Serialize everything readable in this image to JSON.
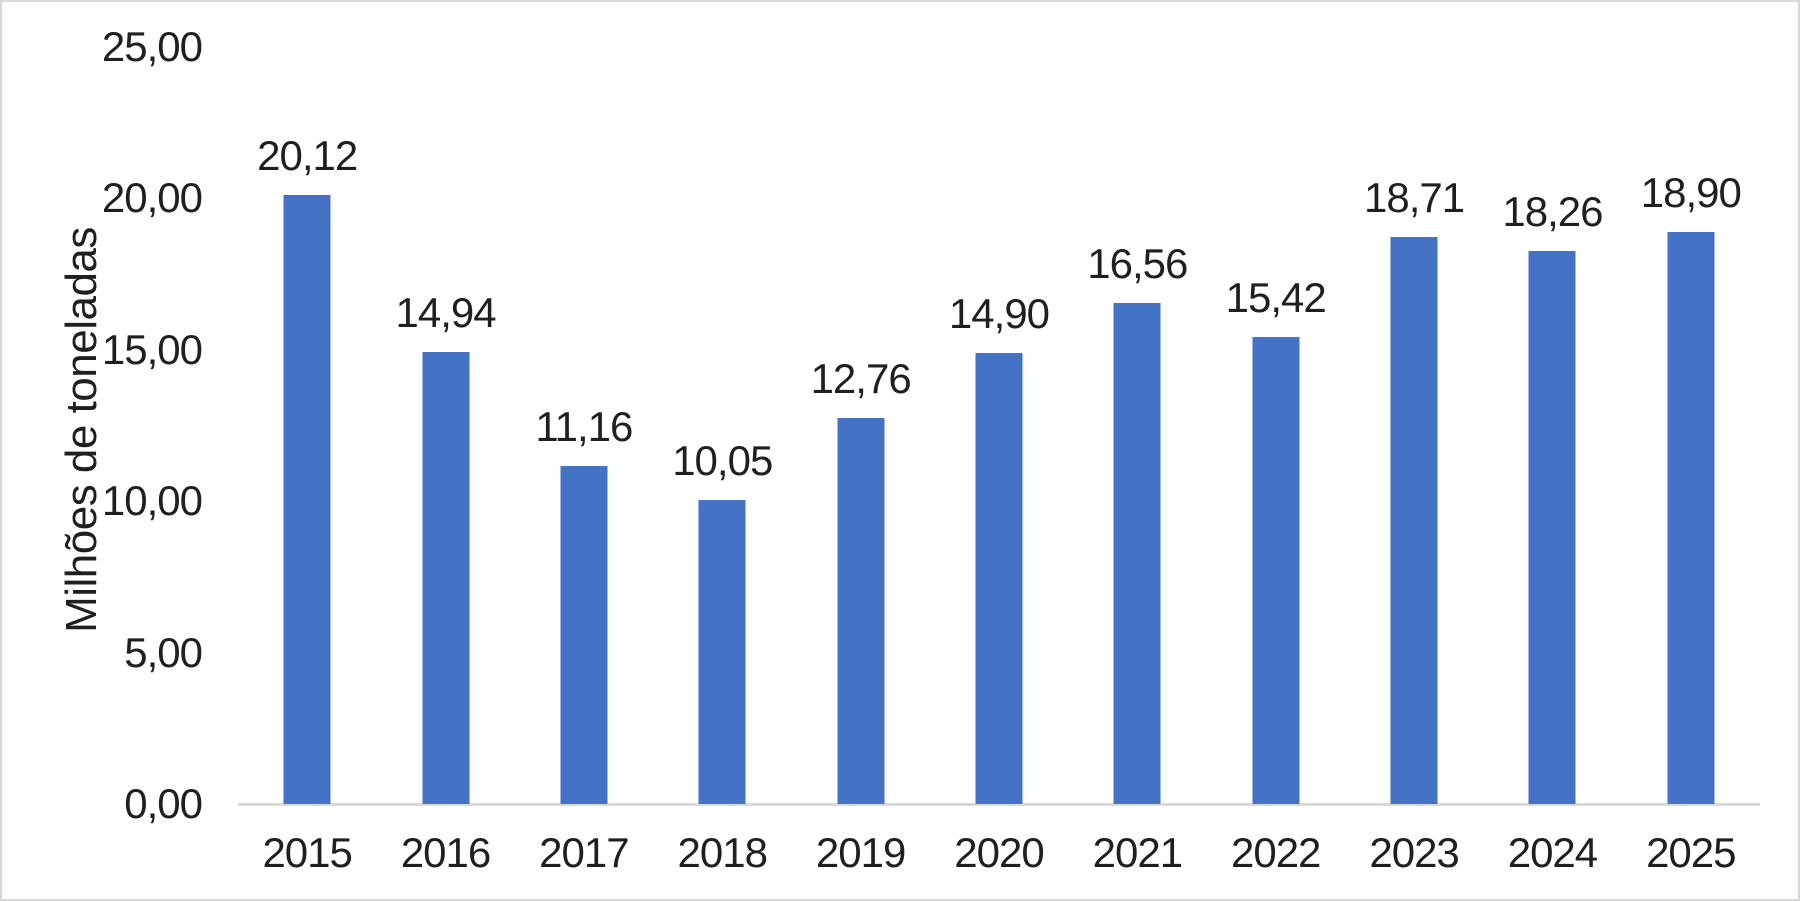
{
  "chart_data": {
    "type": "bar",
    "title": "",
    "xlabel": "",
    "ylabel": "Milhões de toneladas",
    "categories": [
      "2015",
      "2016",
      "2017",
      "2018",
      "2019",
      "2020",
      "2021",
      "2022",
      "2023",
      "2024",
      "2025"
    ],
    "values": [
      20.12,
      14.94,
      11.16,
      10.05,
      12.76,
      14.9,
      16.56,
      15.42,
      18.71,
      18.26,
      18.9
    ],
    "value_labels": [
      "20,12",
      "14,94",
      "11,16",
      "10,05",
      "12,76",
      "14,90",
      "16,56",
      "15,42",
      "18,71",
      "18,26",
      "18,90"
    ],
    "ylim": [
      0,
      25
    ],
    "y_ticks": {
      "values": [
        0,
        5,
        10,
        15,
        20,
        25
      ],
      "labels": [
        "0,00",
        "5,00",
        "10,00",
        "15,00",
        "20,00",
        "25,00"
      ]
    },
    "grid": false,
    "legend": false,
    "bar_color": "#4472C4",
    "axis_line_color": "#D9D9D9",
    "text_color": "#1F1F1F",
    "frame_border_color": "#D8D8D8",
    "background_color": "#FFFFFF"
  }
}
